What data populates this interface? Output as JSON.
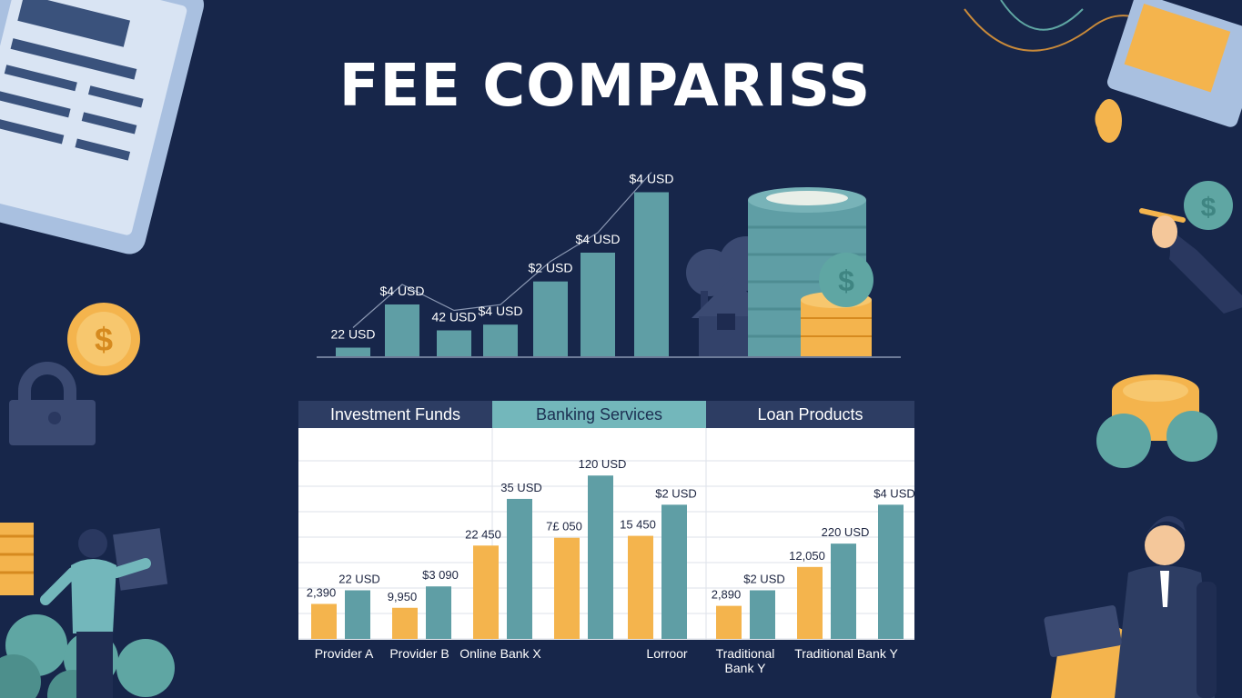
{
  "title": "FEE COMPARISS",
  "colors": {
    "background": "#17264a",
    "teal": "#5f9ea5",
    "yellow": "#f4b44d",
    "panel_header": "#2d3d63",
    "panel_header_active": "#73b7bb"
  },
  "tabs": [
    "Investment Funds",
    "Banking Services",
    "Loan Products"
  ],
  "chart_data": [
    {
      "type": "bar",
      "values": [
        3,
        18,
        9,
        11,
        26,
        36,
        57
      ],
      "data_labels": [
        "22 USD",
        "$4 USD",
        "42 USD",
        "$4 USD",
        "$2 USD",
        "$4 USD",
        "$4 USD"
      ],
      "ylim": [
        0,
        60
      ],
      "trend_line": true
    },
    {
      "type": "bar",
      "categories": [
        "Provider A",
        "Provider B",
        "Online Bank X",
        "",
        "Lorroor",
        "Traditional Bank Y",
        "Traditional Bank Y"
      ],
      "ylim": [
        0,
        100
      ],
      "grid": true,
      "series": [
        {
          "color": "#f4b44d",
          "values": [
            18,
            16,
            48,
            52,
            53,
            17,
            37
          ],
          "data_labels": [
            "2,390",
            "9,950",
            "22 450",
            "7£ 050",
            "15 450",
            "2,890",
            "12,050"
          ]
        },
        {
          "color": "#5f9ea5",
          "values": [
            25,
            27,
            72,
            84,
            69,
            25,
            49
          ],
          "data_labels": [
            "22 USD",
            "$3 090",
            "35 USD",
            "120 USD",
            "$2 USD",
            "$2 USD",
            "220 USD"
          ]
        }
      ],
      "extra_label": "$4 USD",
      "extra_value": 69
    }
  ],
  "decorations": [
    "tablet-icon",
    "dollar-coin-icon",
    "lock-icon",
    "coin-stack-icon",
    "person-icon",
    "businessman-icon",
    "notebook-icon",
    "house-icon",
    "tree-icon"
  ]
}
